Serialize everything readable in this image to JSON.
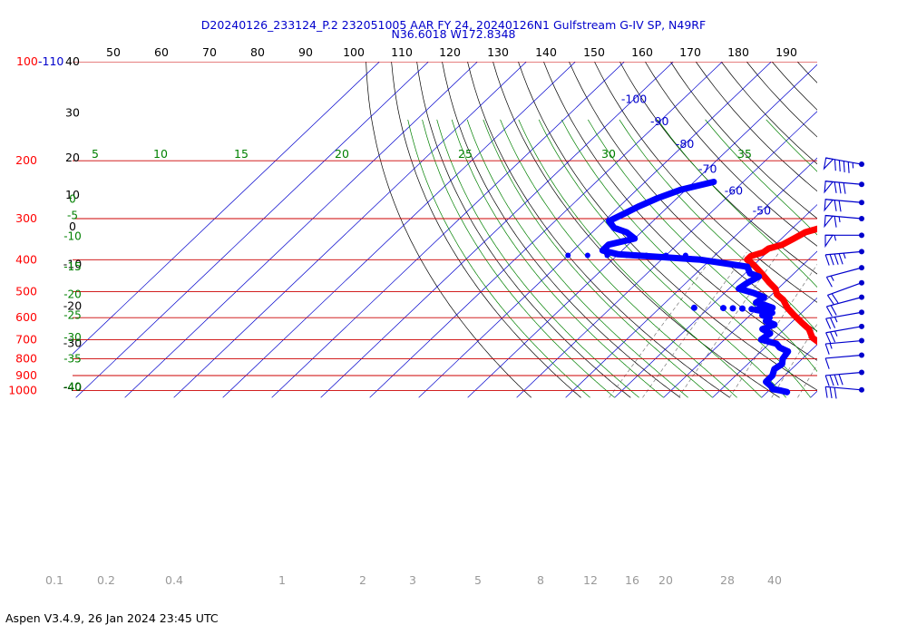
{
  "header": {
    "line1": "D20240126_233124_P.2 232051005 AAR FY 24, 20240126N1 Gulfstream G-IV SP, N49RF",
    "line2": "N36.6018 W172.8348"
  },
  "footer": "Aspen V3.4.9, 26 Jan 2024  23:45 UTC",
  "chart_data": {
    "type": "skew-t",
    "pressure_labels": [
      {
        "p": 200,
        "label": "200"
      },
      {
        "p": 300,
        "label": "300"
      },
      {
        "p": 400,
        "label": "400"
      },
      {
        "p": 500,
        "label": "500"
      },
      {
        "p": 600,
        "label": "600"
      },
      {
        "p": 700,
        "label": "700"
      },
      {
        "p": 800,
        "label": "800"
      },
      {
        "p": 900,
        "label": "900"
      },
      {
        "p": 1000,
        "label": "1000"
      }
    ],
    "top_label_red": "100",
    "top_label_blue": "-110",
    "top_axis_ticks": [
      "50",
      "60",
      "70",
      "80",
      "90",
      "100",
      "110",
      "120",
      "130",
      "140",
      "150",
      "160",
      "170",
      "180",
      "190"
    ],
    "left_axis_ticks": [
      {
        "p": 100,
        "label": "40"
      },
      {
        "p": 143,
        "label": "30"
      },
      {
        "p": 196,
        "label": "20"
      },
      {
        "p": 254,
        "label": "10"
      },
      {
        "p": 318,
        "label": "0"
      },
      {
        "p": 414,
        "label": "-10"
      },
      {
        "p": 553,
        "label": "-20"
      },
      {
        "p": 719,
        "label": "-30"
      },
      {
        "p": 976,
        "label": "-40"
      }
    ],
    "isotherms": [
      {
        "t": -100,
        "label": "-100"
      },
      {
        "t": -90,
        "label": "-90"
      },
      {
        "t": -80,
        "label": "-80"
      },
      {
        "t": -70,
        "label": "-70"
      },
      {
        "t": -60,
        "label": "-60"
      },
      {
        "t": -50,
        "label": "-50"
      },
      {
        "t": -40,
        "label": "-40"
      },
      {
        "t": -30,
        "label": "-30"
      },
      {
        "t": -20,
        "label": "-20"
      },
      {
        "t": -10,
        "label": "-10"
      },
      {
        "t": 0,
        "label": "0"
      },
      {
        "t": 10,
        "label": "10"
      },
      {
        "t": 20,
        "label": "20"
      },
      {
        "t": 30,
        "label": "30"
      },
      {
        "t": 40,
        "label": "40"
      }
    ],
    "moist_adiabats": [
      {
        "t": 5,
        "label": "5"
      },
      {
        "t": 10,
        "label": "10"
      },
      {
        "t": 15,
        "label": "15"
      },
      {
        "t": 20,
        "label": "20"
      },
      {
        "t": 25,
        "label": "25"
      },
      {
        "t": 30,
        "label": "30"
      },
      {
        "t": 35,
        "label": "35"
      }
    ],
    "mixing_ratio_labels": [
      "0.1",
      "0.2",
      "0.4",
      "1",
      "2",
      "3",
      "5",
      "8",
      "12",
      "16",
      "20",
      "28",
      "40"
    ],
    "green_left_labels": [
      {
        "p": 262,
        "label": "0"
      },
      {
        "p": 293,
        "label": "-5"
      },
      {
        "p": 340,
        "label": "-10"
      },
      {
        "p": 420,
        "label": "-15"
      },
      {
        "p": 510,
        "label": "-20"
      },
      {
        "p": 590,
        "label": "-25"
      },
      {
        "p": 690,
        "label": "-30"
      },
      {
        "p": 800,
        "label": "-35"
      },
      {
        "p": 975,
        "label": "-40"
      }
    ],
    "temperature": {
      "name": "",
      "color": "#ff0000",
      "p": [
        1010,
        1000,
        980,
        950,
        900,
        870,
        830,
        800,
        760,
        720,
        690,
        650,
        620,
        590,
        560,
        530,
        510,
        490,
        470,
        445,
        415,
        400,
        390,
        380,
        370,
        360,
        345,
        330,
        320,
        310,
        300,
        290,
        280,
        270,
        255,
        240,
        230,
        220,
        213,
        205
      ],
      "t": [
        11.9,
        10.5,
        9,
        7.5,
        4,
        1.5,
        -1.5,
        -3.5,
        -6.5,
        -9.5,
        -12.5,
        -15,
        -18,
        -21,
        -24,
        -26.5,
        -29,
        -30.5,
        -33,
        -36,
        -40,
        -42.5,
        -42.5,
        -40.8,
        -40.5,
        -38.5,
        -37.5,
        -36.5,
        -34.3,
        -32.2,
        -31,
        -30.5,
        -32.2,
        -35,
        -37.5,
        -39.5,
        -40.5,
        -41,
        -39.5,
        -39.5
      ]
    },
    "dewpoint": {
      "name": "",
      "color": "#0000ff",
      "p": [
        1010,
        1000,
        990,
        970,
        940,
        900,
        860,
        830,
        800,
        760,
        740,
        720,
        700,
        670,
        650,
        630,
        615,
        600,
        590,
        580,
        568,
        560,
        550,
        540,
        520,
        505,
        490,
        470,
        450,
        440,
        420,
        400,
        385,
        375,
        360,
        345,
        330,
        320,
        305,
        290,
        275,
        260,
        245,
        232
      ],
      "t": [
        -6,
        -7.5,
        -9.5,
        -10.5,
        -12.5,
        -12.5,
        -13.5,
        -13,
        -14,
        -14.5,
        -17,
        -18.5,
        -22.5,
        -22,
        -24.5,
        -23,
        -25.5,
        -25.5,
        -27.5,
        -26,
        -30,
        -27,
        -29,
        -31.5,
        -31,
        -34,
        -38,
        -37.5,
        -36.5,
        -39,
        -41,
        -52,
        -70,
        -74,
        -74,
        -70,
        -73,
        -76.5,
        -79,
        -77.5,
        -76,
        -74,
        -71,
        -66
      ]
    },
    "moisture_spur": {
      "color": "#0000ff",
      "p": [
        560,
        561,
        562,
        563,
        565
      ],
      "t": [
        -43,
        -37,
        -35,
        -33,
        -31
      ]
    },
    "wind_barbs": [
      {
        "p": 205,
        "dir": 280,
        "kt": 95
      },
      {
        "p": 236,
        "dir": 275,
        "kt": 80
      },
      {
        "p": 268,
        "dir": 275,
        "kt": 70
      },
      {
        "p": 300,
        "dir": 275,
        "kt": 65
      },
      {
        "p": 337,
        "dir": 270,
        "kt": 55
      },
      {
        "p": 378,
        "dir": 265,
        "kt": 45
      },
      {
        "p": 423,
        "dir": 255,
        "kt": 15
      },
      {
        "p": 470,
        "dir": 250,
        "kt": 20
      },
      {
        "p": 520,
        "dir": 255,
        "kt": 20
      },
      {
        "p": 578,
        "dir": 260,
        "kt": 25
      },
      {
        "p": 638,
        "dir": 260,
        "kt": 25
      },
      {
        "p": 705,
        "dir": 265,
        "kt": 15
      },
      {
        "p": 780,
        "dir": 265,
        "kt": 10
      },
      {
        "p": 880,
        "dir": 265,
        "kt": 40
      },
      {
        "p": 995,
        "dir": 275,
        "kt": 30
      }
    ]
  }
}
